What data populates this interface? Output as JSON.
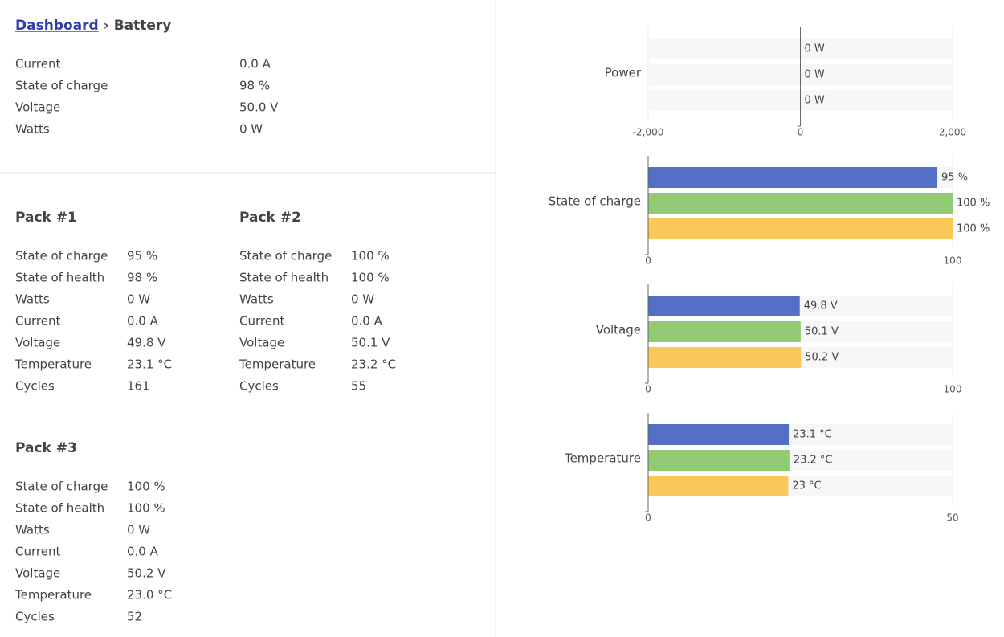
{
  "breadcrumb": {
    "link": "Dashboard",
    "separator": "›",
    "current": "Battery"
  },
  "summary": [
    [
      "Current",
      "0.0 A"
    ],
    [
      "State of charge",
      "98 %"
    ],
    [
      "Voltage",
      "50.0 V"
    ],
    [
      "Watts",
      "0 W"
    ]
  ],
  "packs": [
    {
      "title": "Pack #1",
      "rows": [
        [
          "State of charge",
          "95 %"
        ],
        [
          "State of health",
          "98 %"
        ],
        [
          "Watts",
          "0 W"
        ],
        [
          "Current",
          "0.0 A"
        ],
        [
          "Voltage",
          "49.8 V"
        ],
        [
          "Temperature",
          "23.1 °C"
        ],
        [
          "Cycles",
          "161"
        ]
      ]
    },
    {
      "title": "Pack #2",
      "rows": [
        [
          "State of charge",
          "100 %"
        ],
        [
          "State of health",
          "100 %"
        ],
        [
          "Watts",
          "0 W"
        ],
        [
          "Current",
          "0.0 A"
        ],
        [
          "Voltage",
          "50.1 V"
        ],
        [
          "Temperature",
          "23.2 °C"
        ],
        [
          "Cycles",
          "55"
        ]
      ]
    },
    {
      "title": "Pack #3",
      "rows": [
        [
          "State of charge",
          "100 %"
        ],
        [
          "State of health",
          "100 %"
        ],
        [
          "Watts",
          "0 W"
        ],
        [
          "Current",
          "0.0 A"
        ],
        [
          "Voltage",
          "50.2 V"
        ],
        [
          "Temperature",
          "23.0 °C"
        ],
        [
          "Cycles",
          "52"
        ]
      ]
    }
  ],
  "charts": [
    {
      "type": "bar",
      "label": "Power",
      "values": [
        0,
        0,
        0
      ],
      "value_labels": [
        "0 W",
        "0 W",
        "0 W"
      ],
      "colors": [
        "#5470c6",
        "#91cc75",
        "#fac858"
      ],
      "xlim": [
        -2000,
        2000
      ],
      "xticks": [
        {
          "value": -2000,
          "label": "-2,000"
        },
        0,
        {
          "value": 2000,
          "label": "2,000"
        }
      ]
    },
    {
      "type": "bar",
      "label": "State of charge",
      "values": [
        95,
        100,
        100
      ],
      "value_labels": [
        "95 %",
        "100 %",
        "100 %"
      ],
      "colors": [
        "#5470c6",
        "#91cc75",
        "#fac858"
      ],
      "xlim": [
        0,
        100
      ],
      "xticks": [
        0,
        100
      ]
    },
    {
      "type": "bar",
      "label": "Voltage",
      "values": [
        49.8,
        50.1,
        50.2
      ],
      "value_labels": [
        "49.8 V",
        "50.1 V",
        "50.2 V"
      ],
      "colors": [
        "#5470c6",
        "#91cc75",
        "#fac858"
      ],
      "xlim": [
        0,
        100
      ],
      "xticks": [
        0,
        100
      ]
    },
    {
      "type": "bar",
      "label": "Temperature",
      "values": [
        23.1,
        23.2,
        23
      ],
      "value_labels": [
        "23.1 °C",
        "23.2 °C",
        "23 °C"
      ],
      "colors": [
        "#5470c6",
        "#91cc75",
        "#fac858"
      ],
      "xlim": [
        0,
        50
      ],
      "xticks": [
        0,
        50
      ]
    }
  ]
}
